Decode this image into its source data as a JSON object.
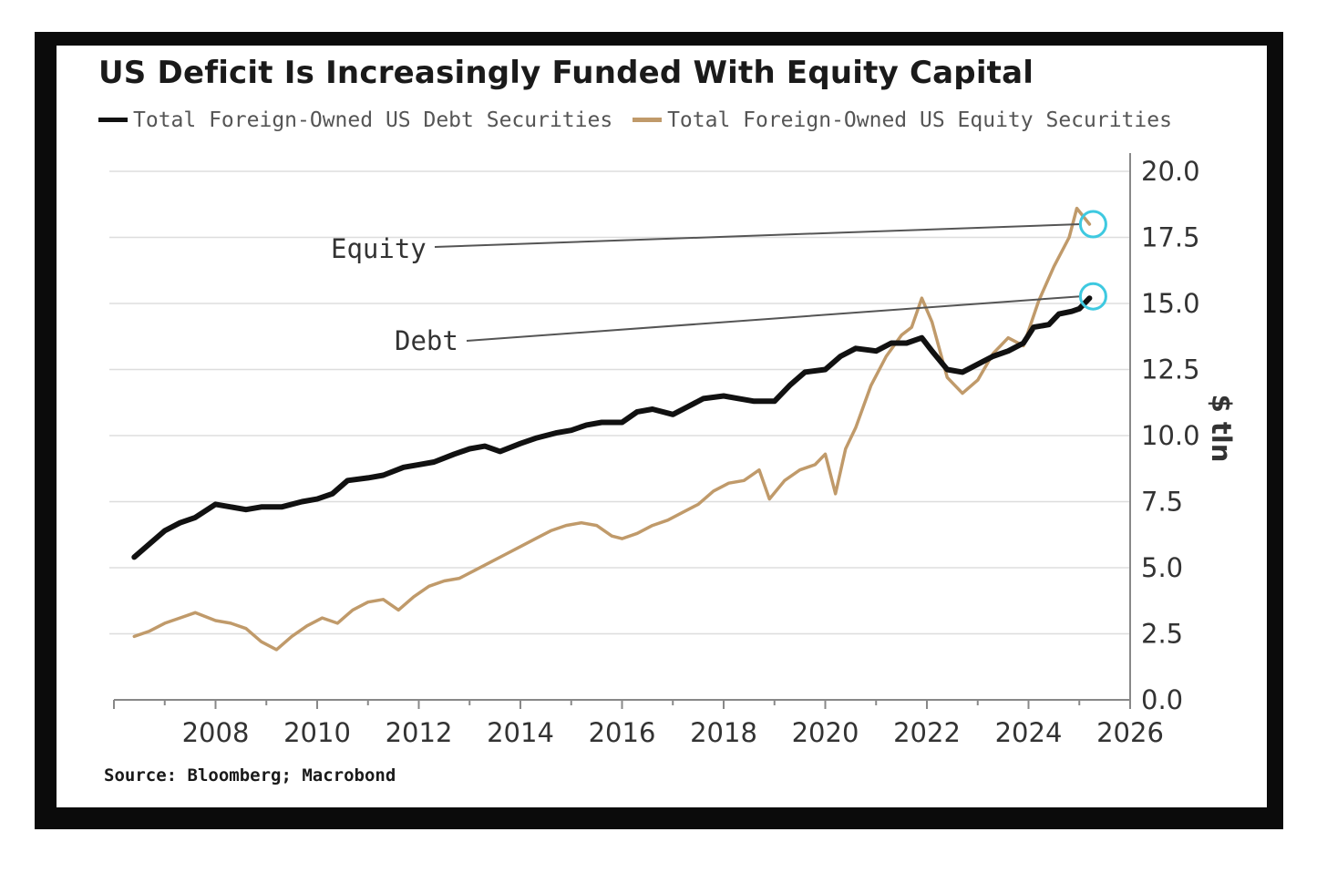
{
  "chart_data": {
    "type": "line",
    "title": "US Deficit Is Increasingly Funded With Equity Capital",
    "ylabel": "$ tln",
    "xlim": [
      2006,
      2026
    ],
    "ylim": [
      0,
      20
    ],
    "x_ticks": [
      "2008",
      "2010",
      "2012",
      "2014",
      "2016",
      "2018",
      "2020",
      "2022",
      "2024",
      "2026"
    ],
    "y_ticks": [
      "0.0",
      "2.5",
      "5.0",
      "7.5",
      "10.0",
      "12.5",
      "15.0",
      "17.5",
      "20.0"
    ],
    "grid": "horizontal",
    "legend_position": "top",
    "series": [
      {
        "name": "Total Foreign-Owned US Debt Securities",
        "color": "#111111",
        "annotation": "Debt",
        "x": [
          2006.4,
          2006.7,
          2007.0,
          2007.3,
          2007.6,
          2008.0,
          2008.3,
          2008.6,
          2008.9,
          2009.3,
          2009.7,
          2010.0,
          2010.3,
          2010.6,
          2011.0,
          2011.3,
          2011.7,
          2012.0,
          2012.3,
          2012.7,
          2013.0,
          2013.3,
          2013.6,
          2014.0,
          2014.3,
          2014.7,
          2015.0,
          2015.3,
          2015.6,
          2016.0,
          2016.3,
          2016.6,
          2017.0,
          2017.3,
          2017.6,
          2018.0,
          2018.3,
          2018.6,
          2019.0,
          2019.3,
          2019.6,
          2020.0,
          2020.3,
          2020.6,
          2021.0,
          2021.3,
          2021.6,
          2021.9,
          2022.1,
          2022.4,
          2022.7,
          2023.0,
          2023.3,
          2023.6,
          2023.9,
          2024.1,
          2024.4,
          2024.6,
          2024.85,
          2025.0,
          2025.2
        ],
        "values": [
          5.4,
          5.9,
          6.4,
          6.7,
          6.9,
          7.4,
          7.3,
          7.2,
          7.3,
          7.3,
          7.5,
          7.6,
          7.8,
          8.3,
          8.4,
          8.5,
          8.8,
          8.9,
          9.0,
          9.3,
          9.5,
          9.6,
          9.4,
          9.7,
          9.9,
          10.1,
          10.2,
          10.4,
          10.5,
          10.5,
          10.9,
          11.0,
          10.8,
          11.1,
          11.4,
          11.5,
          11.4,
          11.3,
          11.3,
          11.9,
          12.4,
          12.5,
          13.0,
          13.3,
          13.2,
          13.5,
          13.5,
          13.7,
          13.2,
          12.5,
          12.4,
          12.7,
          13.0,
          13.2,
          13.5,
          14.1,
          14.2,
          14.6,
          14.7,
          14.8,
          15.2
        ]
      },
      {
        "name": "Total Foreign-Owned US Equity Securities",
        "color": "#c09a6a",
        "annotation": "Equity",
        "x": [
          2006.4,
          2006.7,
          2007.0,
          2007.3,
          2007.6,
          2008.0,
          2008.3,
          2008.6,
          2008.9,
          2009.2,
          2009.5,
          2009.8,
          2010.1,
          2010.4,
          2010.7,
          2011.0,
          2011.3,
          2011.6,
          2011.9,
          2012.2,
          2012.5,
          2012.8,
          2013.1,
          2013.4,
          2013.7,
          2014.0,
          2014.3,
          2014.6,
          2014.9,
          2015.2,
          2015.5,
          2015.8,
          2016.0,
          2016.3,
          2016.6,
          2016.9,
          2017.2,
          2017.5,
          2017.8,
          2018.1,
          2018.4,
          2018.7,
          2018.9,
          2019.2,
          2019.5,
          2019.8,
          2020.0,
          2020.2,
          2020.4,
          2020.6,
          2020.9,
          2021.2,
          2021.5,
          2021.7,
          2021.9,
          2022.1,
          2022.4,
          2022.7,
          2023.0,
          2023.3,
          2023.6,
          2023.9,
          2024.2,
          2024.5,
          2024.8,
          2024.95,
          2025.2
        ],
        "values": [
          2.4,
          2.6,
          2.9,
          3.1,
          3.3,
          3.0,
          2.9,
          2.7,
          2.2,
          1.9,
          2.4,
          2.8,
          3.1,
          2.9,
          3.4,
          3.7,
          3.8,
          3.4,
          3.9,
          4.3,
          4.5,
          4.6,
          4.9,
          5.2,
          5.5,
          5.8,
          6.1,
          6.4,
          6.6,
          6.7,
          6.6,
          6.2,
          6.1,
          6.3,
          6.6,
          6.8,
          7.1,
          7.4,
          7.9,
          8.2,
          8.3,
          8.7,
          7.6,
          8.3,
          8.7,
          8.9,
          9.3,
          7.8,
          9.5,
          10.3,
          11.9,
          13.0,
          13.8,
          14.1,
          15.2,
          14.3,
          12.2,
          11.6,
          12.1,
          13.1,
          13.7,
          13.4,
          15.1,
          16.4,
          17.5,
          18.6,
          18.0
        ]
      }
    ]
  },
  "legend": {
    "debt_label": "Total Foreign-Owned US Debt Securities",
    "equity_label": "Total Foreign-Owned US Equity Securities"
  },
  "source": "Source: Bloomberg; Macrobond",
  "colors": {
    "debt": "#111111",
    "equity": "#c09a6a",
    "highlight": "#3ec9e0",
    "grid": "#dddddd",
    "frame": "#0b0b0b"
  }
}
